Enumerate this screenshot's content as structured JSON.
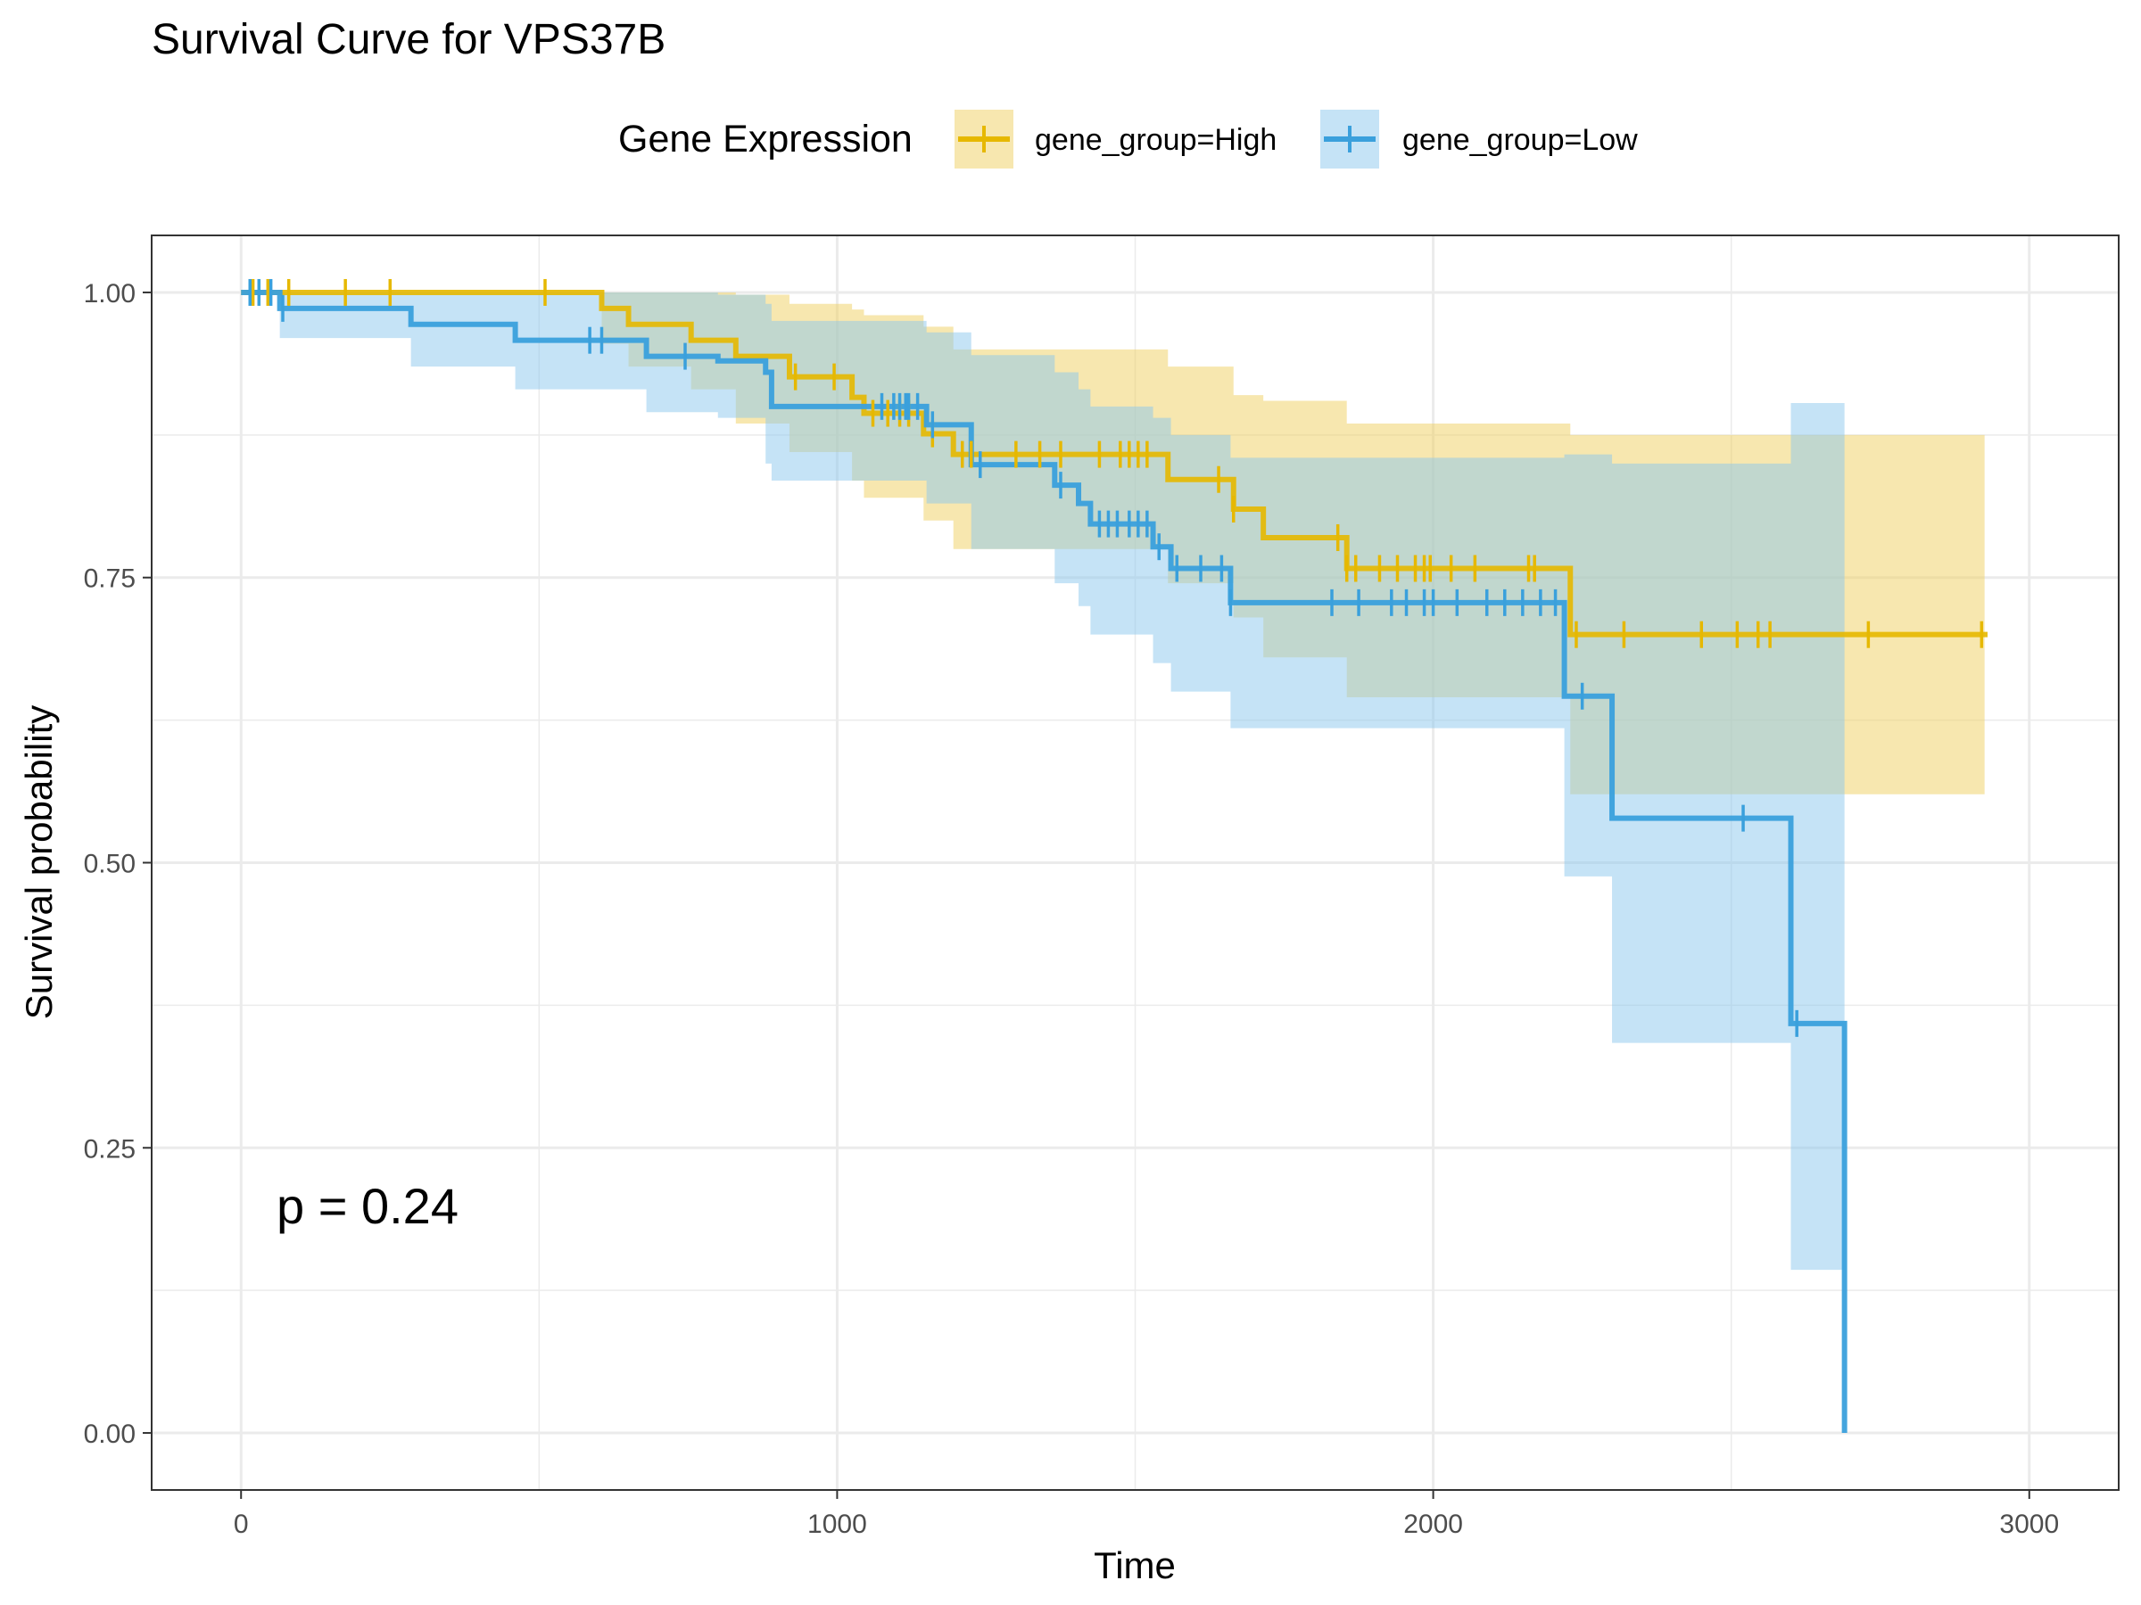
{
  "chart_data": {
    "type": "line",
    "subtype": "kaplan-meier survival curve with confidence bands and censor marks",
    "title": "Survival Curve for VPS37B",
    "xlabel": "Time",
    "ylabel": "Survival probability",
    "xlim": [
      -150,
      3150
    ],
    "ylim": [
      -0.05,
      1.05
    ],
    "x_ticks": [
      0,
      1000,
      2000,
      3000
    ],
    "x_tick_labels": [
      "0",
      "1000",
      "2000",
      "3000"
    ],
    "y_ticks": [
      0,
      0.25,
      0.5,
      0.75,
      1.0
    ],
    "y_tick_labels": [
      "0.00",
      "0.25",
      "0.50",
      "0.75",
      "1.00"
    ],
    "grid": true,
    "legend": {
      "title": "Gene Expression",
      "position": "top",
      "entries": [
        "gene_group=High",
        "gene_group=Low"
      ]
    },
    "annotation": "p = 0.24",
    "series": [
      {
        "name": "gene_group=High",
        "color": "#E6B800",
        "band_color": "#F0D060",
        "steps": [
          [
            0,
            1.0
          ],
          [
            605,
            0.986
          ],
          [
            650,
            0.972
          ],
          [
            755,
            0.958
          ],
          [
            830,
            0.944
          ],
          [
            920,
            0.926
          ],
          [
            1025,
            0.908
          ],
          [
            1045,
            0.894
          ],
          [
            1145,
            0.876
          ],
          [
            1195,
            0.858
          ],
          [
            1555,
            0.836
          ],
          [
            1665,
            0.81
          ],
          [
            1715,
            0.785
          ],
          [
            1855,
            0.758
          ],
          [
            2230,
            0.7
          ],
          [
            2930,
            0.7
          ]
        ],
        "band": [
          [
            0,
            1.0,
            1.0
          ],
          [
            605,
            1.0,
            0.955
          ],
          [
            650,
            1.0,
            0.935
          ],
          [
            755,
            1.0,
            0.915
          ],
          [
            830,
            0.998,
            0.885
          ],
          [
            920,
            0.99,
            0.86
          ],
          [
            1025,
            0.985,
            0.835
          ],
          [
            1045,
            0.98,
            0.82
          ],
          [
            1145,
            0.97,
            0.8
          ],
          [
            1195,
            0.95,
            0.775
          ],
          [
            1555,
            0.935,
            0.745
          ],
          [
            1665,
            0.91,
            0.715
          ],
          [
            1715,
            0.905,
            0.68
          ],
          [
            1855,
            0.885,
            0.645
          ],
          [
            2230,
            0.875,
            0.56
          ],
          [
            2925,
            0.875,
            0.56
          ]
        ],
        "censor_times": [
          20,
          45,
          80,
          175,
          250,
          510,
          930,
          995,
          1060,
          1085,
          1105,
          1120,
          1160,
          1210,
          1225,
          1300,
          1340,
          1375,
          1440,
          1475,
          1490,
          1505,
          1520,
          1640,
          1665,
          1840,
          1855,
          1870,
          1910,
          1940,
          1970,
          1985,
          1995,
          2030,
          2070,
          2160,
          2170,
          2240,
          2320,
          2450,
          2510,
          2545,
          2565,
          2730,
          2920
        ]
      },
      {
        "name": "gene_group=Low",
        "color": "#3AA0DC",
        "band_color": "#8CC8EE",
        "steps": [
          [
            0,
            1.0
          ],
          [
            65,
            0.986
          ],
          [
            285,
            0.972
          ],
          [
            460,
            0.958
          ],
          [
            680,
            0.944
          ],
          [
            800,
            0.94
          ],
          [
            880,
            0.93
          ],
          [
            890,
            0.9
          ],
          [
            1150,
            0.884
          ],
          [
            1225,
            0.849
          ],
          [
            1365,
            0.831
          ],
          [
            1405,
            0.815
          ],
          [
            1425,
            0.797
          ],
          [
            1530,
            0.777
          ],
          [
            1560,
            0.758
          ],
          [
            1660,
            0.728
          ],
          [
            2220,
            0.646
          ],
          [
            2300,
            0.539
          ],
          [
            2600,
            0.359
          ],
          [
            2690,
            0.0
          ]
        ],
        "band": [
          [
            0,
            1.0,
            1.0
          ],
          [
            65,
            1.0,
            0.96
          ],
          [
            285,
            1.0,
            0.935
          ],
          [
            460,
            1.0,
            0.915
          ],
          [
            680,
            1.0,
            0.895
          ],
          [
            800,
            0.998,
            0.89
          ],
          [
            880,
            0.99,
            0.85
          ],
          [
            890,
            0.975,
            0.835
          ],
          [
            1150,
            0.965,
            0.815
          ],
          [
            1225,
            0.945,
            0.775
          ],
          [
            1365,
            0.93,
            0.745
          ],
          [
            1405,
            0.915,
            0.725
          ],
          [
            1425,
            0.9,
            0.7
          ],
          [
            1530,
            0.89,
            0.675
          ],
          [
            1560,
            0.875,
            0.65
          ],
          [
            1660,
            0.855,
            0.618
          ],
          [
            2220,
            0.858,
            0.488
          ],
          [
            2300,
            0.85,
            0.342
          ],
          [
            2600,
            0.903,
            0.143
          ],
          [
            2690,
            0.903,
            0.143
          ]
        ],
        "censor_times": [
          15,
          30,
          50,
          70,
          585,
          605,
          745,
          1075,
          1095,
          1105,
          1115,
          1120,
          1135,
          1160,
          1240,
          1375,
          1440,
          1455,
          1470,
          1490,
          1505,
          1520,
          1540,
          1570,
          1610,
          1645,
          1660,
          1830,
          1875,
          1930,
          1955,
          1985,
          2000,
          2040,
          2090,
          2120,
          2150,
          2180,
          2205,
          2250,
          2520,
          2610
        ]
      }
    ]
  }
}
